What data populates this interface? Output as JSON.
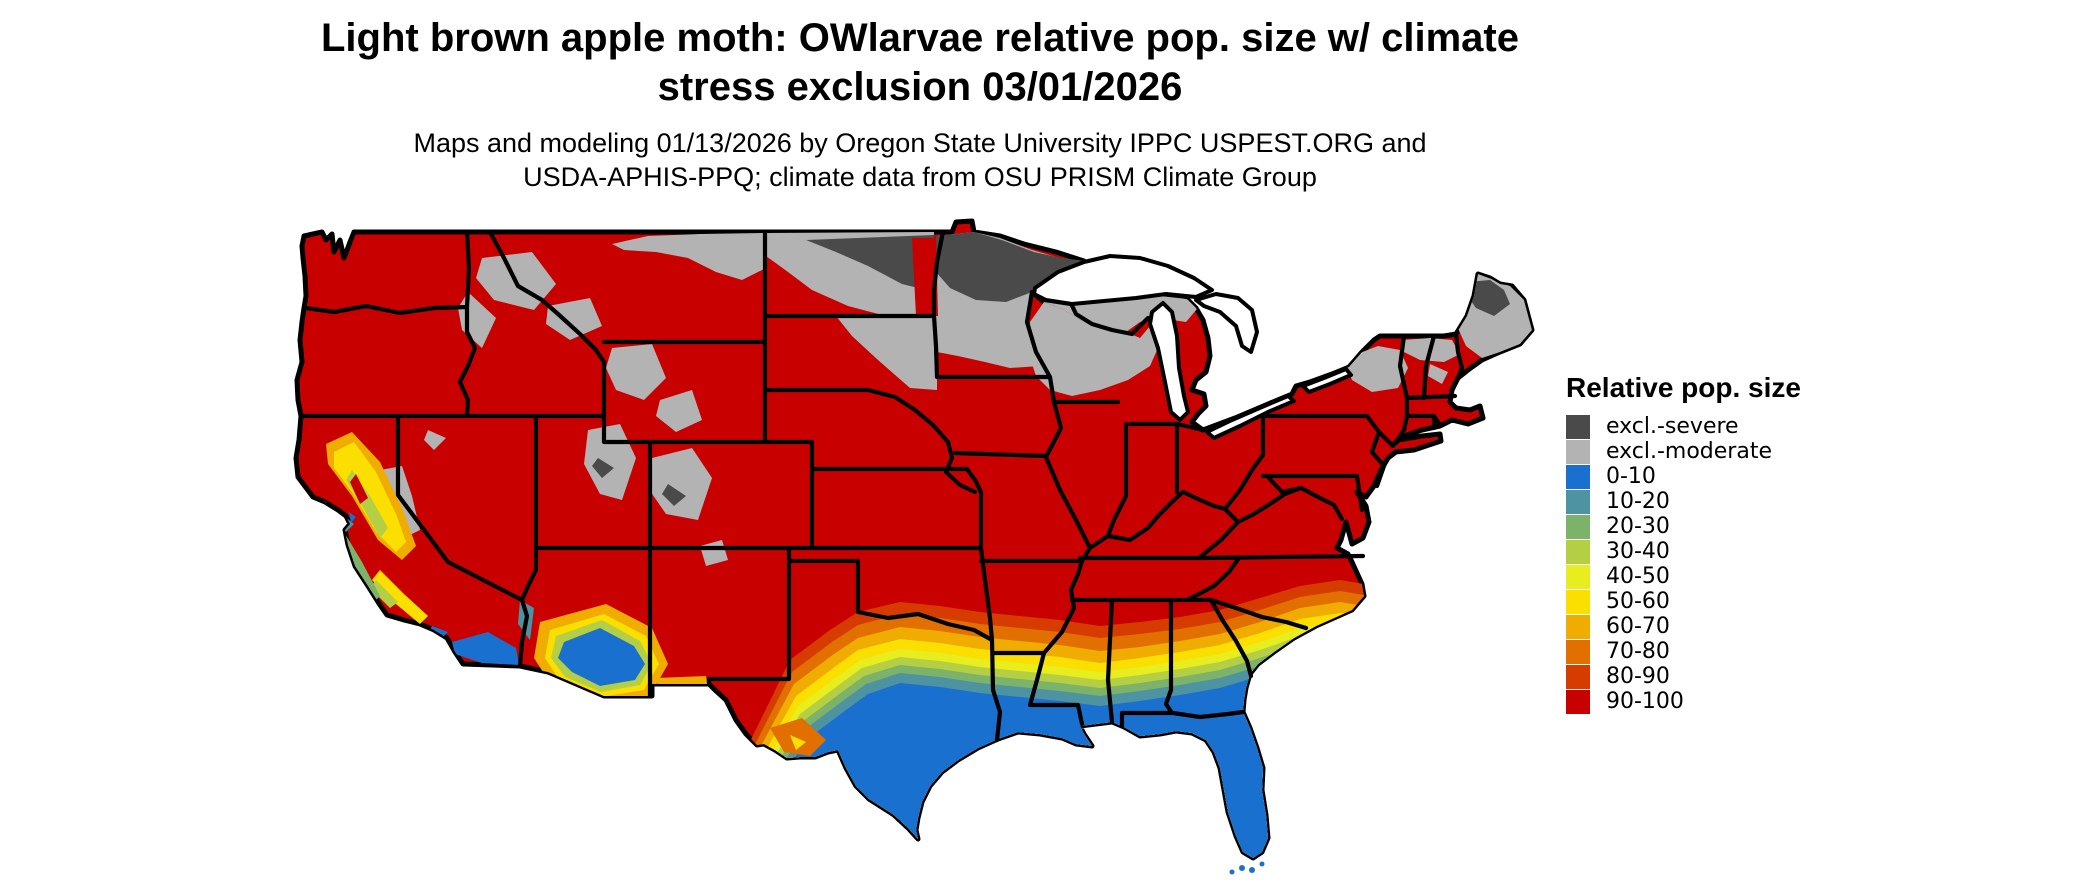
{
  "header": {
    "title_line1": "Light brown apple moth: OWlarvae relative pop. size w/ climate",
    "title_line2": "stress exclusion 03/01/2026",
    "subtitle_line1": "Maps and modeling 01/13/2026 by Oregon State University IPPC USPEST.ORG and",
    "subtitle_line2": "USDA-APHIS-PPQ; climate data from OSU PRISM Climate Group"
  },
  "legend": {
    "title": "Relative pop. size",
    "items": [
      {
        "label": "excl.-severe",
        "color": "#4a4a4a"
      },
      {
        "label": "excl.-moderate",
        "color": "#b3b3b3"
      },
      {
        "label": "0-10",
        "color": "#1a70cf"
      },
      {
        "label": "10-20",
        "color": "#4d93a2"
      },
      {
        "label": "20-30",
        "color": "#7cb269"
      },
      {
        "label": "30-40",
        "color": "#b5cf45"
      },
      {
        "label": "40-50",
        "color": "#e8ed1f"
      },
      {
        "label": "50-60",
        "color": "#fadf00"
      },
      {
        "label": "60-70",
        "color": "#f0ac00"
      },
      {
        "label": "70-80",
        "color": "#e17000"
      },
      {
        "label": "80-90",
        "color": "#d63c00"
      },
      {
        "label": "90-100",
        "color": "#c90000"
      }
    ]
  },
  "colors": {
    "excl_severe": "#4a4a4a",
    "excl_moderate": "#b3b3b3",
    "c0_10": "#1a70cf",
    "c10_20": "#4d93a2",
    "c20_30": "#7cb269",
    "c30_40": "#b5cf45",
    "c40_50": "#e8ed1f",
    "c50_60": "#fadf00",
    "c60_70": "#f0ac00",
    "c70_80": "#e17000",
    "c80_90": "#d63c00",
    "c90_100": "#c90000",
    "border": "#000000",
    "water": "#ffffff"
  },
  "map_data": {
    "type": "choropleth-map",
    "region": "Conterminous United States with state borders",
    "date_shown_on_map": "03/01/2026",
    "pattern_summary": {
      "dominant_class": "90-100 (red) across most of the interior and both coasts",
      "excl_severe": "northern Minnesota / northeastern North Dakota and northern Maine",
      "excl_moderate": "northern tier: eastern Montana edge, North Dakota, NE South Dakota, northern Minnesota, northern Wisconsin, Michigan UP, Adirondacks, northern New England, Rocky Mountain patches (ID, MT, WY, UT, CO)",
      "south_gradient": "bands 80-90 down to 0-10 descending toward the Gulf Coast across Texas, the Deep South and the Carolinas",
      "low_population_blue": "0-10 over south Texas, Gulf Coast, all of Florida, southern Louisiana, southern Arizona and far southern California",
      "california": "Central Valley shows 50-70 (gold/orange) with 20-40 fringes; coastal gradient to 0-10 in the far south"
    }
  }
}
